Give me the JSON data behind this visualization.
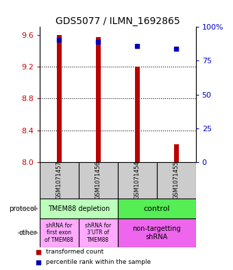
{
  "title": "GDS5077 / ILMN_1692865",
  "samples": [
    "GSM1071457",
    "GSM1071456",
    "GSM1071454",
    "GSM1071455"
  ],
  "red_values": [
    9.595,
    9.57,
    9.2,
    8.22
  ],
  "blue_values": [
    9.535,
    9.515,
    9.46,
    9.43
  ],
  "ylim": [
    8.0,
    9.7
  ],
  "yticks_left": [
    8.0,
    8.4,
    8.8,
    9.2,
    9.6
  ],
  "yticks_right": [
    0,
    25,
    50,
    75,
    100
  ],
  "ytick_labels_right": [
    "0",
    "25",
    "50",
    "75",
    "100%"
  ],
  "dotted_lines": [
    8.4,
    8.8,
    9.2
  ],
  "protocol_colors": [
    "#bbffbb",
    "#55ee55"
  ],
  "protocol_labels": [
    "TMEM88 depletion",
    "control"
  ],
  "other_colors_left": "#ffaaff",
  "other_colors_right": "#ee66ee",
  "other_labels": [
    "shRNA for\nfirst exon\nof TMEM88",
    "shRNA for\n3'UTR of\nTMEM88",
    "non-targetting\nshRNA"
  ],
  "legend_red": "transformed count",
  "legend_blue": "percentile rank within the sample",
  "left_color": "#bb0000",
  "blue_color": "#0000bb",
  "left_tick_color": "#cc0000",
  "right_tick_color": "#0000cc",
  "bar_width": 0.12,
  "sample_bg": "#cccccc"
}
